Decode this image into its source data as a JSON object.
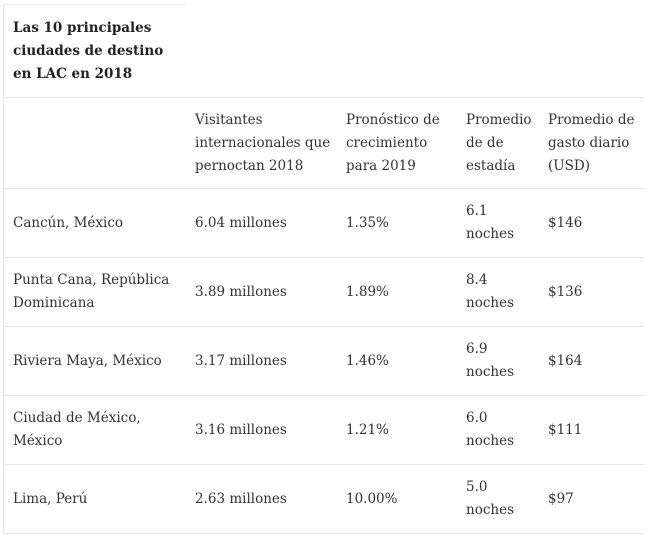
{
  "title": "Las 10 principales ciudades de destino en LAC en 2018",
  "table": {
    "headers": [
      "Visitantes internacionales que pernoctan 2018",
      "Pronóstico de crecimiento para 2019",
      "Promedio de de estadía",
      "Promedio de gasto diario (USD)"
    ],
    "rows": [
      [
        "Cancún, México",
        "6.04 millones",
        "1.35%",
        "6.1 noches",
        "$146"
      ],
      [
        "Punta Cana, República Dominicana",
        "3.89 millones",
        "1.89%",
        "8.4 noches",
        "$136"
      ],
      [
        "Riviera Maya, México",
        "3.17 millones",
        "1.46%",
        "6.9 noches",
        "$164"
      ],
      [
        "Ciudad de México, México",
        "3.16 millones",
        "1.21%",
        "6.0 noches",
        "$111"
      ],
      [
        "Lima, Perú",
        "2.63 millones",
        "10.00%",
        "5.0 noches",
        "$97"
      ]
    ]
  }
}
